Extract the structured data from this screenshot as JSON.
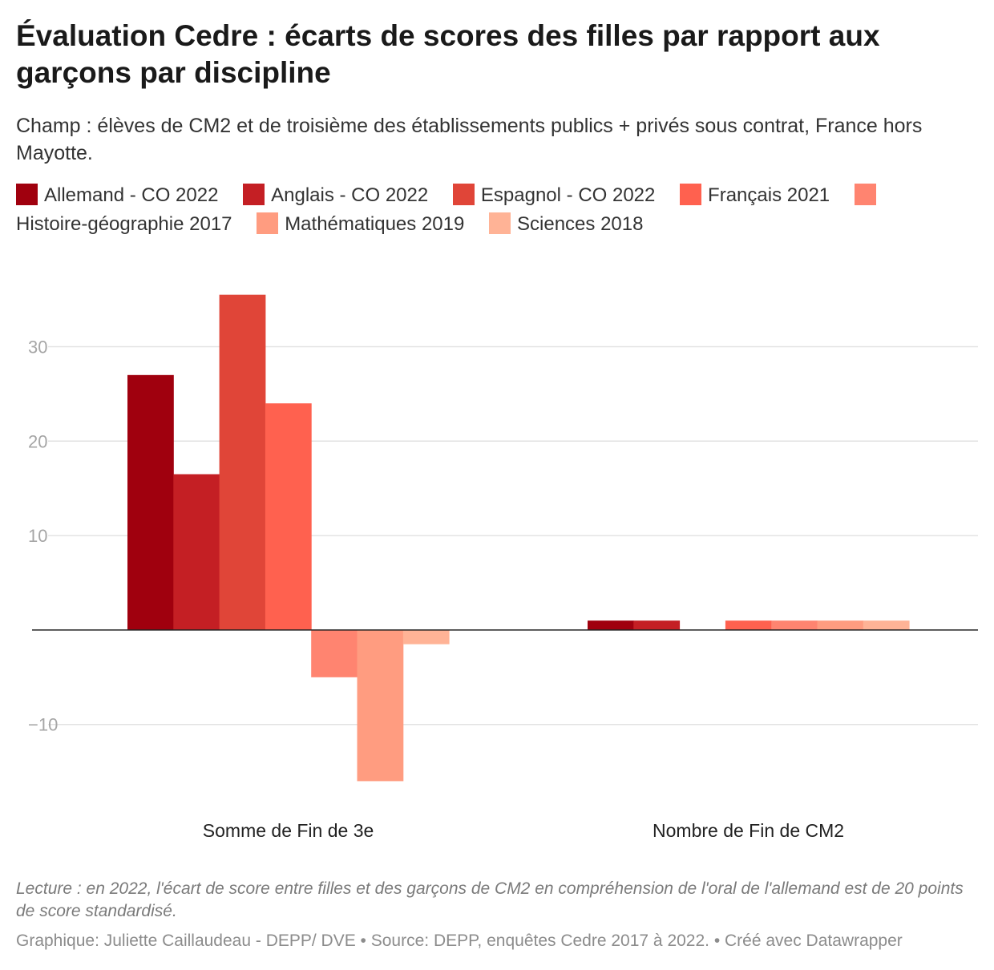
{
  "header": {
    "title": "Évaluation Cedre : écarts de scores des filles par rapport aux garçons par discipline",
    "subtitle": "Champ : élèves de CM2 et de troisième des établissements publics + privés sous contrat, France hors Mayotte."
  },
  "footer": {
    "note": "Lecture : en 2022, l'écart de score entre filles et des garçons de CM2 en compréhension de l'oral de l'allemand est de 20 points de score standardisé.",
    "credits": "Graphique: Juliette Caillaudeau - DEPP/ DVE • Source: DEPP, enquêtes Cedre 2017 à 2022.  • Créé avec Datawrapper"
  },
  "chart_data": {
    "type": "bar",
    "categories": [
      "Somme de Fin de 3e",
      "Nombre de Fin de CM2"
    ],
    "series": [
      {
        "name": "Allemand - CO 2022",
        "color": "#a0000e",
        "values": [
          27,
          1
        ]
      },
      {
        "name": "Anglais - CO 2022",
        "color": "#c41f24",
        "values": [
          16.5,
          1
        ]
      },
      {
        "name": "Espagnol - CO 2022",
        "color": "#e04538",
        "values": [
          35.5,
          null
        ]
      },
      {
        "name": "Français 2021",
        "color": "#ff614f",
        "values": [
          24,
          1
        ]
      },
      {
        "name": "Histoire-géographie 2017",
        "color": "#ff8470",
        "values": [
          -5,
          1
        ]
      },
      {
        "name": "Mathématiques 2019",
        "color": "#ff9c80",
        "values": [
          -16,
          1
        ]
      },
      {
        "name": "Sciences 2018",
        "color": "#ffb396",
        "values": [
          -1.5,
          1
        ]
      }
    ],
    "yticks": [
      30,
      20,
      10,
      -10
    ],
    "ytick_labels": [
      "30",
      "20",
      "10",
      "−10"
    ],
    "ylim": [
      -18,
      37
    ],
    "grid": true,
    "legend": "top-left"
  }
}
